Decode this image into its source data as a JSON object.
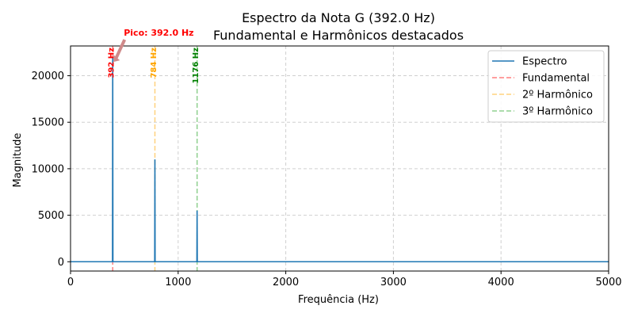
{
  "chart_data": {
    "type": "line",
    "title": "Espectro da Nota G (392.0 Hz)",
    "subtitle": "Fundamental e Harmônicos destacados",
    "xlabel": "Frequência (Hz)",
    "ylabel": "Magnitude",
    "xlim": [
      0,
      5000
    ],
    "ylim": [
      -1000,
      23200
    ],
    "xticks": [
      0,
      1000,
      2000,
      3000,
      4000,
      5000
    ],
    "yticks": [
      0,
      5000,
      10000,
      15000,
      20000
    ],
    "grid": true,
    "legend_position": "top-right",
    "series": [
      {
        "name": "Espectro",
        "color": "#1f77b4",
        "x": [
          0,
          389,
          390,
          392,
          394,
          395,
          781,
          782,
          784,
          786,
          787,
          1173,
          1174,
          1176,
          1178,
          1179,
          5000
        ],
        "y": [
          0,
          0,
          0,
          22000,
          0,
          0,
          0,
          0,
          11000,
          0,
          0,
          0,
          0,
          5500,
          0,
          0,
          0
        ]
      }
    ],
    "markers": [
      {
        "name": "Fundamental",
        "x": 392,
        "color": "#ff7f7f",
        "label": "392 Hz",
        "label_color": "#ff0000"
      },
      {
        "name": "2º Harmônico",
        "x": 784,
        "color": "#ffd27f",
        "label": "784 Hz",
        "label_color": "#ffa500"
      },
      {
        "name": "3º Harmônico",
        "x": 1176,
        "color": "#90d090",
        "label": "1176 Hz",
        "label_color": "#008000"
      }
    ],
    "annotation": {
      "text": "Pico: 392.0 Hz",
      "x": 392,
      "y": 22000,
      "color": "#ff0000"
    }
  }
}
